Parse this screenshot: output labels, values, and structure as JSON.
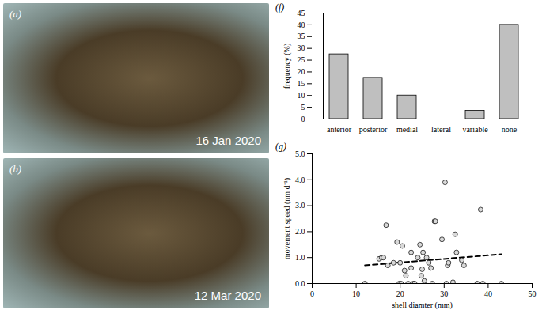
{
  "photos": [
    {
      "label": "(a)",
      "date": "16 Jan 2020"
    },
    {
      "label": "(b)",
      "date": "12 Mar 2020"
    }
  ],
  "chart_data": [
    {
      "type": "bar",
      "title": "(f)",
      "y_label": "frequency (%)",
      "categories": [
        "anterior",
        "posterior",
        "medial",
        "lateral",
        "variable",
        "none"
      ],
      "values": [
        27.5,
        17.5,
        10,
        0,
        3.5,
        40
      ],
      "color": "#bfbfbf",
      "ylim": [
        0,
        45
      ],
      "yticks": [
        0,
        5,
        10,
        15,
        20,
        25,
        30,
        35,
        40,
        45
      ]
    },
    {
      "type": "scatter",
      "title": "(g)",
      "x_label": "shell diamter (mm)",
      "y_label": "movement speed (nm d⁻¹)",
      "x": [
        12,
        15.2,
        15.8,
        16.2,
        16.8,
        17.2,
        18.5,
        19.3,
        19.8,
        20,
        20.2,
        20.5,
        21,
        21.3,
        21.8,
        22.5,
        22.5,
        23,
        23.3,
        24,
        24.5,
        24.8,
        25,
        25.2,
        25.5,
        26,
        26.5,
        27,
        27.3,
        27.8,
        28,
        29.5,
        30.2,
        30.5,
        30.8,
        31,
        32,
        32.5,
        32.8,
        34,
        34.5,
        37.5,
        38.3,
        38.8,
        43
      ],
      "values": [
        0,
        0.95,
        1.0,
        1.0,
        2.25,
        0.7,
        0.8,
        1.6,
        0,
        0.8,
        0,
        1.45,
        0.5,
        0.3,
        0,
        1.2,
        0.6,
        0,
        0,
        1.0,
        1.5,
        0.3,
        0.55,
        1.2,
        0.1,
        1.0,
        0.8,
        0.6,
        0,
        2.4,
        2.4,
        1.7,
        3.9,
        0,
        0.7,
        0.8,
        0.05,
        1.9,
        1.2,
        0.9,
        0.7,
        0,
        2.85,
        0,
        0
      ],
      "color": "#d9d9d9",
      "marker": "circle",
      "trend": {
        "x": [
          12,
          43
        ],
        "values": [
          0.7,
          1.13
        ],
        "line_style": "dashed",
        "color": "#000000"
      },
      "xlim": [
        0,
        50
      ],
      "xticks": [
        0,
        10,
        20,
        30,
        40,
        50
      ],
      "ylim": [
        0,
        5
      ],
      "yticks": [
        0,
        1,
        2,
        3,
        4,
        5
      ]
    }
  ]
}
